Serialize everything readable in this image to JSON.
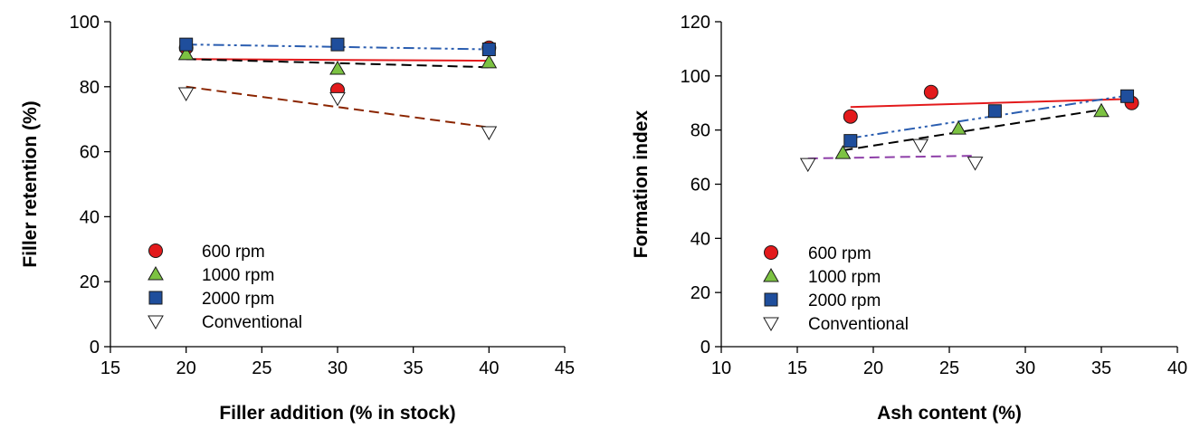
{
  "chart_data": [
    {
      "type": "scatter",
      "title": "",
      "xlabel": "Filler addition (% in stock)",
      "ylabel": "Filler retention (%)",
      "xlim": [
        15,
        45
      ],
      "ylim": [
        0,
        100
      ],
      "xticks": [
        15,
        20,
        25,
        30,
        35,
        40,
        45
      ],
      "yticks": [
        0,
        20,
        40,
        60,
        80,
        100
      ],
      "legend_position": "lower-left",
      "series": [
        {
          "name": "600 rpm",
          "marker": "circle",
          "color": "#e31a1c",
          "points": [
            [
              20,
              92
            ],
            [
              30,
              79
            ],
            [
              40,
              92
            ]
          ],
          "fit": {
            "style": "solid",
            "color": "#e31a1c",
            "from": [
              20,
              88.5
            ],
            "to": [
              40,
              88
            ]
          }
        },
        {
          "name": "1000 rpm",
          "marker": "triangle-up",
          "color": "#7cc242",
          "points": [
            [
              20,
              90
            ],
            [
              30,
              85.5
            ],
            [
              40,
              87.5
            ]
          ],
          "fit": {
            "style": "dashed",
            "color": "#000000",
            "from": [
              20,
              88.5
            ],
            "to": [
              40,
              86
            ]
          }
        },
        {
          "name": "2000 rpm",
          "marker": "square",
          "color": "#1f4e9c",
          "points": [
            [
              20,
              93
            ],
            [
              30,
              93
            ],
            [
              40,
              91.5
            ]
          ],
          "fit": {
            "style": "dashdotdot",
            "color": "#2a5db0",
            "from": [
              20,
              93
            ],
            "to": [
              40,
              91.5
            ]
          }
        },
        {
          "name": "Conventional",
          "marker": "triangle-down",
          "color": "#ffffff",
          "points": [
            [
              20,
              78
            ],
            [
              30,
              76.5
            ],
            [
              40,
              66
            ]
          ],
          "fit": {
            "style": "dashed",
            "color": "#8b2500",
            "from": [
              20,
              80
            ],
            "to": [
              40,
              67.5
            ]
          }
        }
      ]
    },
    {
      "type": "scatter",
      "title": "",
      "xlabel": "Ash content (%)",
      "ylabel": "Formation index",
      "xlim": [
        10,
        40
      ],
      "ylim": [
        0,
        120
      ],
      "xticks": [
        10,
        15,
        20,
        25,
        30,
        35,
        40
      ],
      "yticks": [
        0,
        20,
        40,
        60,
        80,
        100,
        120
      ],
      "legend_position": "lower-left",
      "series": [
        {
          "name": "600 rpm",
          "marker": "circle",
          "color": "#e31a1c",
          "points": [
            [
              18.5,
              85
            ],
            [
              23.8,
              94
            ],
            [
              37,
              90
            ]
          ],
          "fit": {
            "style": "solid",
            "color": "#e31a1c",
            "from": [
              18.5,
              88.5
            ],
            "to": [
              37,
              91.5
            ]
          }
        },
        {
          "name": "1000 rpm",
          "marker": "triangle-up",
          "color": "#7cc242",
          "points": [
            [
              18,
              71.5
            ],
            [
              25.6,
              80.5
            ],
            [
              35,
              87
            ]
          ],
          "fit": {
            "style": "dashed",
            "color": "#000000",
            "from": [
              18,
              72.5
            ],
            "to": [
              35,
              87.5
            ]
          }
        },
        {
          "name": "2000 rpm",
          "marker": "square",
          "color": "#1f4e9c",
          "points": [
            [
              18.5,
              76
            ],
            [
              28,
              87
            ],
            [
              36.7,
              92.5
            ]
          ],
          "fit": {
            "style": "dashdotdot",
            "color": "#2a5db0",
            "from": [
              18.5,
              77
            ],
            "to": [
              37,
              93
            ]
          }
        },
        {
          "name": "Conventional",
          "marker": "triangle-down",
          "color": "#ffffff",
          "points": [
            [
              15.7,
              67.5
            ],
            [
              23.1,
              74.5
            ],
            [
              26.7,
              68
            ]
          ],
          "fit": {
            "style": "dashed",
            "color": "#8e3fa8",
            "from": [
              15.7,
              69.5
            ],
            "to": [
              26.7,
              70.5
            ]
          }
        }
      ]
    }
  ]
}
